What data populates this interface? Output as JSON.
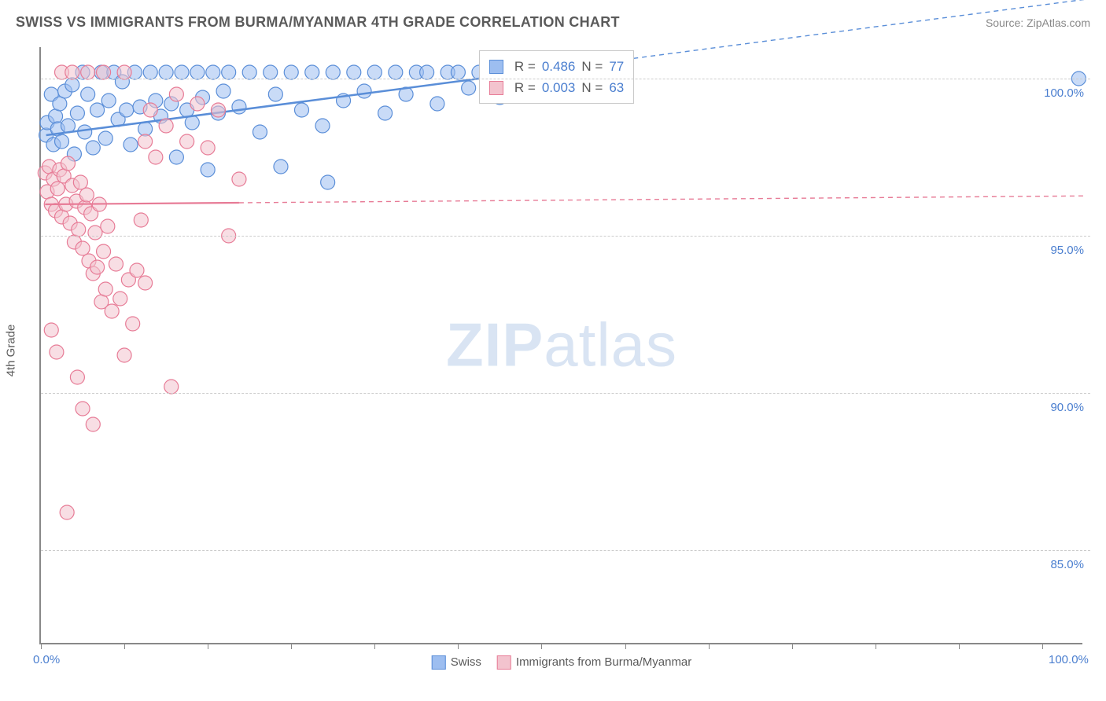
{
  "header": {
    "title": "SWISS VS IMMIGRANTS FROM BURMA/MYANMAR 4TH GRADE CORRELATION CHART",
    "source": "Source: ZipAtlas.com"
  },
  "ylabel": "4th Grade",
  "watermark": {
    "bold": "ZIP",
    "rest": "atlas"
  },
  "chart": {
    "type": "scatter",
    "background_color": "#ffffff",
    "grid_color": "#cccccc",
    "axis_color": "#888888",
    "label_color": "#5a5a5a",
    "tick_label_color": "#4a7ecf",
    "xlim": [
      0,
      100
    ],
    "ylim": [
      82,
      101
    ],
    "x_tick_positions": [
      0,
      8,
      16,
      24,
      32,
      40,
      48,
      56,
      64,
      72,
      80,
      88,
      96
    ],
    "x_end_labels": [
      {
        "x": 0,
        "text": "0.0%"
      },
      {
        "x": 100,
        "text": "100.0%"
      }
    ],
    "y_ticks": [
      {
        "y": 85,
        "label": "85.0%"
      },
      {
        "y": 90,
        "label": "90.0%"
      },
      {
        "y": 95,
        "label": "95.0%"
      },
      {
        "y": 100,
        "label": "100.0%"
      }
    ],
    "marker_radius": 9,
    "marker_opacity": 0.55,
    "series": [
      {
        "name": "Swiss",
        "color_fill": "#9dbef0",
        "color_stroke": "#5a8ed8",
        "points": [
          [
            0.5,
            98.2
          ],
          [
            0.6,
            98.6
          ],
          [
            1.0,
            99.5
          ],
          [
            1.2,
            97.9
          ],
          [
            1.4,
            98.8
          ],
          [
            1.6,
            98.4
          ],
          [
            1.8,
            99.2
          ],
          [
            2.0,
            98.0
          ],
          [
            2.3,
            99.6
          ],
          [
            2.6,
            98.5
          ],
          [
            3.0,
            99.8
          ],
          [
            3.2,
            97.6
          ],
          [
            3.5,
            98.9
          ],
          [
            4.0,
            100.2
          ],
          [
            4.2,
            98.3
          ],
          [
            4.5,
            99.5
          ],
          [
            5.0,
            97.8
          ],
          [
            5.4,
            99.0
          ],
          [
            5.8,
            100.2
          ],
          [
            6.2,
            98.1
          ],
          [
            6.5,
            99.3
          ],
          [
            7.0,
            100.2
          ],
          [
            7.4,
            98.7
          ],
          [
            7.8,
            99.9
          ],
          [
            8.2,
            99.0
          ],
          [
            8.6,
            97.9
          ],
          [
            9.0,
            100.2
          ],
          [
            9.5,
            99.1
          ],
          [
            10.0,
            98.4
          ],
          [
            10.5,
            100.2
          ],
          [
            11.0,
            99.3
          ],
          [
            11.5,
            98.8
          ],
          [
            12.0,
            100.2
          ],
          [
            12.5,
            99.2
          ],
          [
            13.0,
            97.5
          ],
          [
            13.5,
            100.2
          ],
          [
            14.0,
            99.0
          ],
          [
            14.5,
            98.6
          ],
          [
            15.0,
            100.2
          ],
          [
            15.5,
            99.4
          ],
          [
            16.0,
            97.1
          ],
          [
            16.5,
            100.2
          ],
          [
            17.0,
            98.9
          ],
          [
            17.5,
            99.6
          ],
          [
            18.0,
            100.2
          ],
          [
            19.0,
            99.1
          ],
          [
            20.0,
            100.2
          ],
          [
            21.0,
            98.3
          ],
          [
            22.0,
            100.2
          ],
          [
            22.5,
            99.5
          ],
          [
            23.0,
            97.2
          ],
          [
            24.0,
            100.2
          ],
          [
            25.0,
            99.0
          ],
          [
            26.0,
            100.2
          ],
          [
            27.0,
            98.5
          ],
          [
            27.5,
            96.7
          ],
          [
            28.0,
            100.2
          ],
          [
            29.0,
            99.3
          ],
          [
            30.0,
            100.2
          ],
          [
            31.0,
            99.6
          ],
          [
            32.0,
            100.2
          ],
          [
            33.0,
            98.9
          ],
          [
            34.0,
            100.2
          ],
          [
            35.0,
            99.5
          ],
          [
            36.0,
            100.2
          ],
          [
            37.0,
            100.2
          ],
          [
            38.0,
            99.2
          ],
          [
            39.0,
            100.2
          ],
          [
            40.0,
            100.2
          ],
          [
            41.0,
            99.7
          ],
          [
            42.0,
            100.2
          ],
          [
            43.0,
            100.2
          ],
          [
            44.0,
            99.4
          ],
          [
            45.0,
            100.2
          ],
          [
            46.0,
            100.2
          ],
          [
            47.0,
            100.2
          ],
          [
            99.5,
            100.0
          ]
        ],
        "trend": {
          "x1": 0.5,
          "y1": 98.2,
          "x2": 42,
          "y2": 100.0,
          "dash_x1": 42,
          "dash_x2": 100,
          "stroke_width": 2.5
        }
      },
      {
        "name": "Immigrants from Burma/Myanmar",
        "color_fill": "#f3c3ce",
        "color_stroke": "#e77b96",
        "points": [
          [
            0.4,
            97.0
          ],
          [
            0.6,
            96.4
          ],
          [
            0.8,
            97.2
          ],
          [
            1.0,
            96.0
          ],
          [
            1.2,
            96.8
          ],
          [
            1.4,
            95.8
          ],
          [
            1.6,
            96.5
          ],
          [
            1.8,
            97.1
          ],
          [
            2.0,
            95.6
          ],
          [
            2.2,
            96.9
          ],
          [
            2.4,
            96.0
          ],
          [
            2.6,
            97.3
          ],
          [
            2.8,
            95.4
          ],
          [
            3.0,
            96.6
          ],
          [
            3.2,
            94.8
          ],
          [
            3.4,
            96.1
          ],
          [
            3.6,
            95.2
          ],
          [
            3.8,
            96.7
          ],
          [
            4.0,
            94.6
          ],
          [
            4.2,
            95.9
          ],
          [
            4.4,
            96.3
          ],
          [
            4.6,
            94.2
          ],
          [
            4.8,
            95.7
          ],
          [
            5.0,
            93.8
          ],
          [
            5.2,
            95.1
          ],
          [
            5.4,
            94.0
          ],
          [
            5.6,
            96.0
          ],
          [
            5.8,
            92.9
          ],
          [
            6.0,
            94.5
          ],
          [
            6.2,
            93.3
          ],
          [
            6.4,
            95.3
          ],
          [
            6.8,
            92.6
          ],
          [
            7.2,
            94.1
          ],
          [
            7.6,
            93.0
          ],
          [
            8.0,
            91.2
          ],
          [
            8.4,
            93.6
          ],
          [
            8.8,
            92.2
          ],
          [
            9.2,
            93.9
          ],
          [
            9.6,
            95.5
          ],
          [
            10.0,
            98.0
          ],
          [
            10.5,
            99.0
          ],
          [
            11.0,
            97.5
          ],
          [
            12.0,
            98.5
          ],
          [
            13.0,
            99.5
          ],
          [
            14.0,
            98.0
          ],
          [
            15.0,
            99.2
          ],
          [
            16.0,
            97.8
          ],
          [
            17.0,
            99.0
          ],
          [
            18.0,
            95.0
          ],
          [
            19.0,
            96.8
          ],
          [
            2.0,
            100.2
          ],
          [
            3.0,
            100.2
          ],
          [
            4.5,
            100.2
          ],
          [
            6.0,
            100.2
          ],
          [
            8.0,
            100.2
          ],
          [
            10.0,
            93.5
          ],
          [
            3.5,
            90.5
          ],
          [
            4.0,
            89.5
          ],
          [
            5.0,
            89.0
          ],
          [
            2.5,
            86.2
          ],
          [
            1.0,
            92.0
          ],
          [
            1.5,
            91.3
          ],
          [
            12.5,
            90.2
          ]
        ],
        "trend": {
          "x1": 0.4,
          "y1": 96.0,
          "x2": 19,
          "y2": 96.05,
          "dash_x1": 19,
          "dash_x2": 100,
          "stroke_width": 2.2
        }
      }
    ]
  },
  "stats_legend": {
    "rows": [
      {
        "swatch_fill": "#9dbef0",
        "swatch_stroke": "#5a8ed8",
        "r_label": "R = ",
        "r_val": "0.486",
        "n_label": "   N = ",
        "n_val": "77"
      },
      {
        "swatch_fill": "#f3c3ce",
        "swatch_stroke": "#e77b96",
        "r_label": "R = ",
        "r_val": "0.003",
        "n_label": "   N = ",
        "n_val": "63"
      }
    ]
  },
  "bottom_legend": {
    "items": [
      {
        "swatch_fill": "#9dbef0",
        "swatch_stroke": "#5a8ed8",
        "label": "Swiss"
      },
      {
        "swatch_fill": "#f3c3ce",
        "swatch_stroke": "#e77b96",
        "label": "Immigrants from Burma/Myanmar"
      }
    ]
  }
}
